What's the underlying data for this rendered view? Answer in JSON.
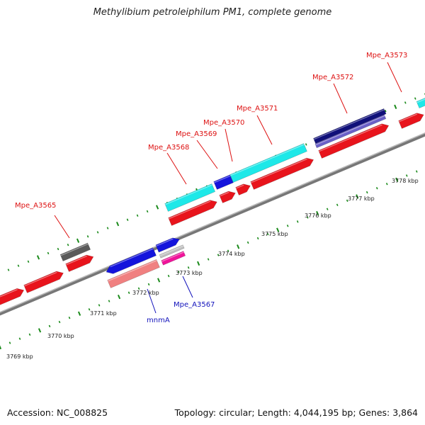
{
  "title": "Methylibium petroleiphilum PM1, complete genome",
  "footer": {
    "accession": "Accession: NC_008825",
    "topology": "Topology: circular; Length: 4,044,195 bp; Genes: 3,864"
  },
  "scale_labels": [
    "3769 kbp",
    "3770 kbp",
    "3771 kbp",
    "3772 kbp",
    "3773 kbp",
    "3774 kbp",
    "3775 kbp",
    "3776 kbp",
    "3777 kbp",
    "3778 kbp"
  ],
  "gene_labels": {
    "red": [
      "Mpe_A3565",
      "Mpe_A3568",
      "Mpe_A3569",
      "Mpe_A3570",
      "Mpe_A3571",
      "Mpe_A3572",
      "Mpe_A3573"
    ],
    "blue": [
      "mnmA",
      "Mpe_A3567"
    ]
  },
  "colors": {
    "cds_red": "#e8141c",
    "cyan": "#1ee8e8",
    "blue": "#1414dc",
    "navy": "#10107a",
    "slate_blue": "#6a60c8",
    "salmon": "#f08080",
    "magenta": "#f0149a",
    "dark_gray": "#5a5a5a",
    "light_gray": "#c0c0c0",
    "tick_green": "#1a8a1a",
    "label_red": "#dd1111",
    "label_blue": "#1111bb"
  }
}
